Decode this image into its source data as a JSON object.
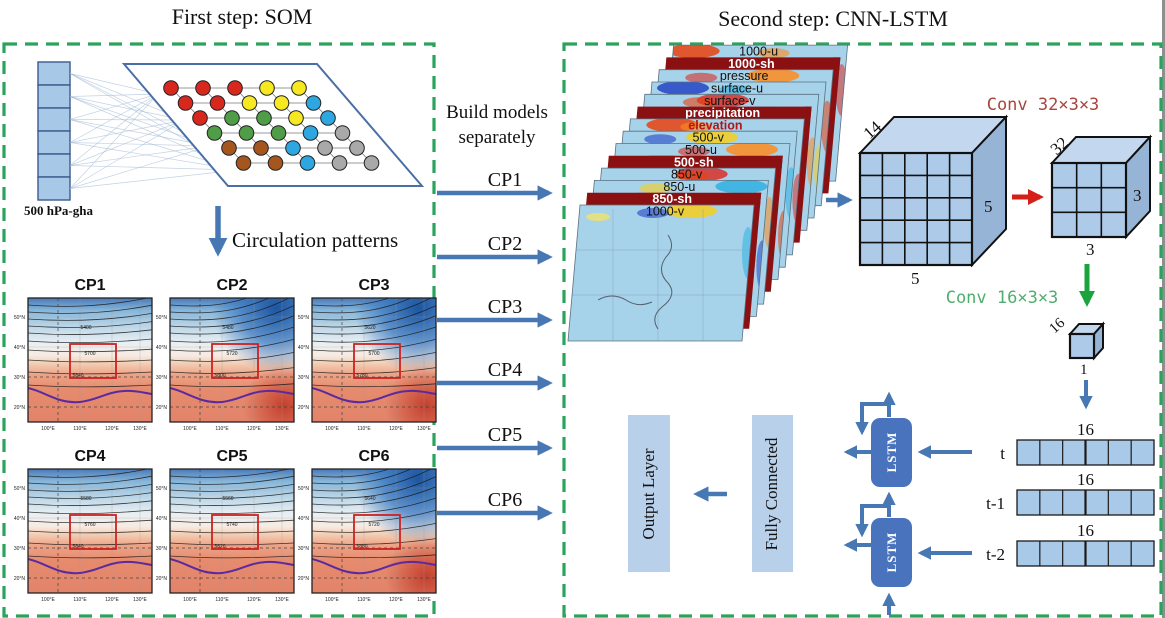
{
  "step1": {
    "title": "First step: SOM",
    "input_label": "500 hPa-gha",
    "circulation_label": "Circulation patterns",
    "som_grid": {
      "rows": [
        [
          "r",
          "r",
          "r",
          "y",
          "y"
        ],
        [
          "r",
          "r",
          "y",
          "y",
          "c"
        ],
        [
          "r",
          "g",
          "g",
          "y",
          "c"
        ],
        [
          "g",
          "g",
          "g",
          "c",
          "gr"
        ],
        [
          "br",
          "br",
          "c",
          "gr",
          "gr"
        ],
        [
          "br",
          "br",
          "c",
          "gr",
          "gr"
        ]
      ]
    },
    "map_yticks": [
      "50°N",
      "40°N",
      "30°N",
      "20°N"
    ],
    "map_xticks": [
      "100°E",
      "110°E",
      "120°E",
      "130°E"
    ],
    "maps": [
      {
        "name": "CP1",
        "dark_corner": false,
        "contour_labels": [
          "5400",
          "5700",
          "5840"
        ]
      },
      {
        "name": "CP2",
        "dark_corner": true,
        "contour_labels": [
          "5480",
          "5720",
          "5800"
        ]
      },
      {
        "name": "CP3",
        "dark_corner": true,
        "contour_labels": [
          "5620",
          "5700",
          "5780"
        ]
      },
      {
        "name": "CP4",
        "dark_corner": false,
        "contour_labels": [
          "5580",
          "5760",
          "5840"
        ]
      },
      {
        "name": "CP5",
        "dark_corner": false,
        "contour_labels": [
          "5560",
          "5740",
          "5820"
        ]
      },
      {
        "name": "CP6",
        "dark_corner": true,
        "contour_labels": [
          "5640",
          "5720",
          "5880"
        ]
      }
    ]
  },
  "middle": {
    "build_line1": "Build models",
    "build_line2": "separately",
    "arrows": [
      "CP1",
      "CP2",
      "CP3",
      "CP4",
      "CP5",
      "CP6"
    ]
  },
  "step2": {
    "title": "Second step: CNN-LSTM",
    "layers": [
      "1000-u",
      "1000-sh",
      "pressure",
      "surface-u",
      "surface-v",
      "precipitation",
      "elevation",
      "500-v",
      "500-u",
      "500-sh",
      "850-v",
      "850-u",
      "850-sh",
      "1000-v"
    ],
    "conv1_label": "Conv 32×3×3",
    "conv2_label": "Conv 16×3×3",
    "cube1": {
      "depth": "14",
      "height": "5",
      "width": "5"
    },
    "cube2": {
      "depth": "32",
      "height": "3",
      "width": "3"
    },
    "cube3": {
      "depth": "16",
      "width": "1"
    },
    "vectors": [
      {
        "label": "t",
        "size": "16",
        "cells": 6
      },
      {
        "label": "t-1",
        "size": "16",
        "cells": 6
      },
      {
        "label": "t-2",
        "size": "16",
        "cells": 6
      }
    ],
    "lstm_label": "LSTM",
    "fc_label": "Fully Connected",
    "output_label": "Output  Layer"
  },
  "colors": {
    "dashed_border_green": "#2aa45c",
    "arrow_blue": "#4878b4",
    "arrow_red": "#d42018",
    "arrow_green": "#1ba33e",
    "conv1_text": "#a8453c",
    "conv2_text": "#4fae6e",
    "maroon_band": "#8a1012",
    "cube_fill": "#adcbe9",
    "vector_cell": "#a9c9e8",
    "lstm_fill": "#4a73be",
    "box_fill": "#b8d0ea",
    "som_red": "#d8281e",
    "som_yellow": "#f6e821",
    "som_cyan": "#2ea7e0",
    "som_green": "#4f9e47",
    "som_brown": "#a5561f",
    "som_gray": "#a9a9a9"
  }
}
